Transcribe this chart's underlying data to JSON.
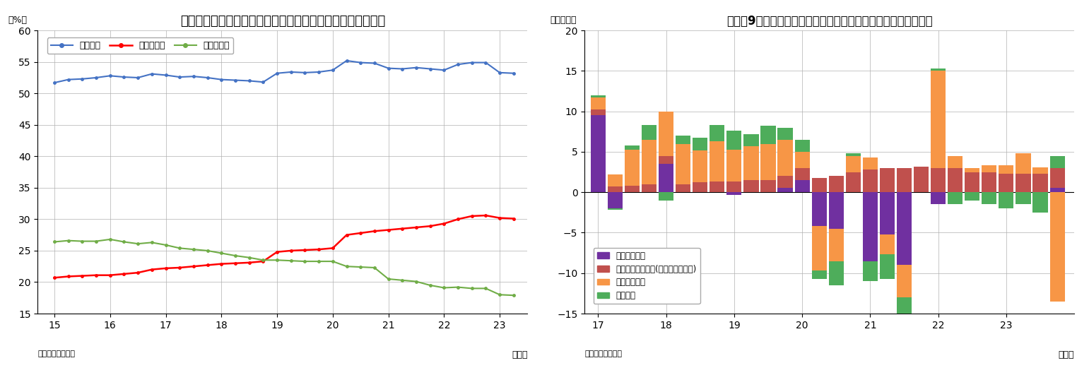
{
  "chart1": {
    "title": "（図表８）流動性・定期性預金の個人金融資産に占める割合",
    "ylabel": "（%）",
    "xlabel": "（年）",
    "source": "（資料）日本銀行",
    "ylim": [
      15,
      60
    ],
    "yticks": [
      15,
      20,
      25,
      30,
      35,
      40,
      45,
      50,
      55,
      60
    ],
    "xtick_positions": [
      15,
      16,
      17,
      18,
      19,
      20,
      21,
      22,
      23
    ],
    "x_labels": [
      "15",
      "16",
      "17",
      "18",
      "19",
      "20",
      "21",
      "22",
      "23"
    ],
    "legend": [
      "現預金計",
      "流動性預金",
      "定期性預金"
    ],
    "colors": [
      "#4472c4",
      "#ff0000",
      "#70ad47"
    ],
    "genyo_x": [
      15.0,
      15.25,
      15.5,
      15.75,
      16.0,
      16.25,
      16.5,
      16.75,
      17.0,
      17.25,
      17.5,
      17.75,
      18.0,
      18.25,
      18.5,
      18.75,
      19.0,
      19.25,
      19.5,
      19.75,
      20.0,
      20.25,
      20.5,
      20.75,
      21.0,
      21.25,
      21.5,
      21.75,
      22.0,
      22.25,
      22.5,
      22.75,
      23.0,
      23.25
    ],
    "genyo_y": [
      51.7,
      52.2,
      52.3,
      52.5,
      52.8,
      52.6,
      52.5,
      53.1,
      52.9,
      52.6,
      52.7,
      52.5,
      52.2,
      52.1,
      52.0,
      51.8,
      53.2,
      53.4,
      53.3,
      53.4,
      53.7,
      55.2,
      54.9,
      54.8,
      54.0,
      53.9,
      54.1,
      53.9,
      53.7,
      54.6,
      54.9,
      54.9,
      53.3,
      53.2
    ],
    "ryudo_x": [
      15.0,
      15.25,
      15.5,
      15.75,
      16.0,
      16.25,
      16.5,
      16.75,
      17.0,
      17.25,
      17.5,
      17.75,
      18.0,
      18.25,
      18.5,
      18.75,
      19.0,
      19.25,
      19.5,
      19.75,
      20.0,
      20.25,
      20.5,
      20.75,
      21.0,
      21.25,
      21.5,
      21.75,
      22.0,
      22.25,
      22.5,
      22.75,
      23.0,
      23.25
    ],
    "ryudo_y": [
      20.7,
      20.9,
      21.0,
      21.1,
      21.1,
      21.3,
      21.5,
      22.0,
      22.2,
      22.3,
      22.5,
      22.7,
      22.9,
      23.0,
      23.1,
      23.3,
      24.8,
      25.0,
      25.1,
      25.2,
      25.4,
      27.5,
      27.8,
      28.1,
      28.3,
      28.5,
      28.7,
      28.9,
      29.3,
      30.0,
      30.5,
      30.6,
      30.2,
      30.1
    ],
    "teiki_x": [
      15.0,
      15.25,
      15.5,
      15.75,
      16.0,
      16.25,
      16.5,
      16.75,
      17.0,
      17.25,
      17.5,
      17.75,
      18.0,
      18.25,
      18.5,
      18.75,
      19.0,
      19.25,
      19.5,
      19.75,
      20.0,
      20.25,
      20.5,
      20.75,
      21.0,
      21.25,
      21.5,
      21.75,
      22.0,
      22.25,
      22.5,
      22.75,
      23.0,
      23.25
    ],
    "teiki_y": [
      26.4,
      26.6,
      26.5,
      26.5,
      26.8,
      26.4,
      26.1,
      26.3,
      25.9,
      25.4,
      25.2,
      25.0,
      24.6,
      24.2,
      23.9,
      23.5,
      23.5,
      23.4,
      23.3,
      23.3,
      23.3,
      22.5,
      22.4,
      22.3,
      20.5,
      20.3,
      20.1,
      19.5,
      19.1,
      19.2,
      19.0,
      19.0,
      18.0,
      17.9
    ]
  },
  "chart2": {
    "title": "（図表9）外貨預金・投信（確定拠出年金内）・国債等のフロー",
    "ylabel": "（千億円）",
    "xlabel": "（年）",
    "source": "（資料）日本銀行",
    "ylim": [
      -15,
      20
    ],
    "yticks": [
      -15,
      -10,
      -5,
      0,
      5,
      10,
      15,
      20
    ],
    "xtick_positions": [
      17,
      18,
      19,
      20,
      21,
      22,
      23
    ],
    "x_labels": [
      "17",
      "18",
      "19",
      "20",
      "21",
      "22",
      "23"
    ],
    "legend": [
      "国債・財投債",
      "投資信託受益証券(確定拠出年金内)",
      "対外証券投資",
      "外貨預金"
    ],
    "colors": [
      "#7030a0",
      "#c0504d",
      "#f79646",
      "#4ead5b"
    ],
    "bar_x": [
      17.0,
      17.25,
      17.5,
      17.75,
      18.0,
      18.25,
      18.5,
      18.75,
      19.0,
      19.25,
      19.5,
      19.75,
      20.0,
      20.25,
      20.5,
      20.75,
      21.0,
      21.25,
      21.5,
      21.75,
      22.0,
      22.25,
      22.5,
      22.75,
      23.0,
      23.25,
      23.5,
      23.75
    ],
    "kokusai": [
      9.5,
      -2.0,
      0.0,
      0.0,
      3.5,
      0.0,
      0.0,
      0.0,
      -0.3,
      0.0,
      0.0,
      0.5,
      1.5,
      -4.2,
      -4.5,
      0.0,
      -8.5,
      -5.2,
      -9.0,
      0.0,
      -1.5,
      0.0,
      0.0,
      0.0,
      0.0,
      0.0,
      0.0,
      0.5
    ],
    "toushin": [
      0.7,
      0.7,
      0.8,
      1.0,
      1.0,
      1.0,
      1.2,
      1.3,
      1.3,
      1.5,
      1.5,
      1.5,
      1.5,
      1.8,
      2.0,
      2.5,
      2.8,
      3.0,
      3.0,
      3.2,
      3.0,
      3.0,
      2.5,
      2.5,
      2.3,
      2.3,
      2.3,
      2.5
    ],
    "gaika_shoken": [
      1.5,
      1.5,
      4.5,
      5.5,
      5.5,
      5.0,
      4.0,
      5.0,
      4.0,
      4.2,
      4.5,
      4.5,
      2.0,
      -5.5,
      -4.0,
      2.0,
      1.5,
      -2.5,
      -4.0,
      0.0,
      12.0,
      1.5,
      0.5,
      0.8,
      1.0,
      2.5,
      0.8,
      -13.5
    ],
    "gaika_yokin": [
      0.3,
      -0.2,
      0.5,
      1.8,
      -1.0,
      1.0,
      1.5,
      2.0,
      2.3,
      1.5,
      2.2,
      1.5,
      1.5,
      -1.0,
      -3.0,
      0.3,
      -2.5,
      -3.0,
      -3.5,
      0.0,
      0.3,
      -1.5,
      -1.0,
      -1.5,
      -2.0,
      -1.5,
      -2.5,
      1.5
    ]
  }
}
